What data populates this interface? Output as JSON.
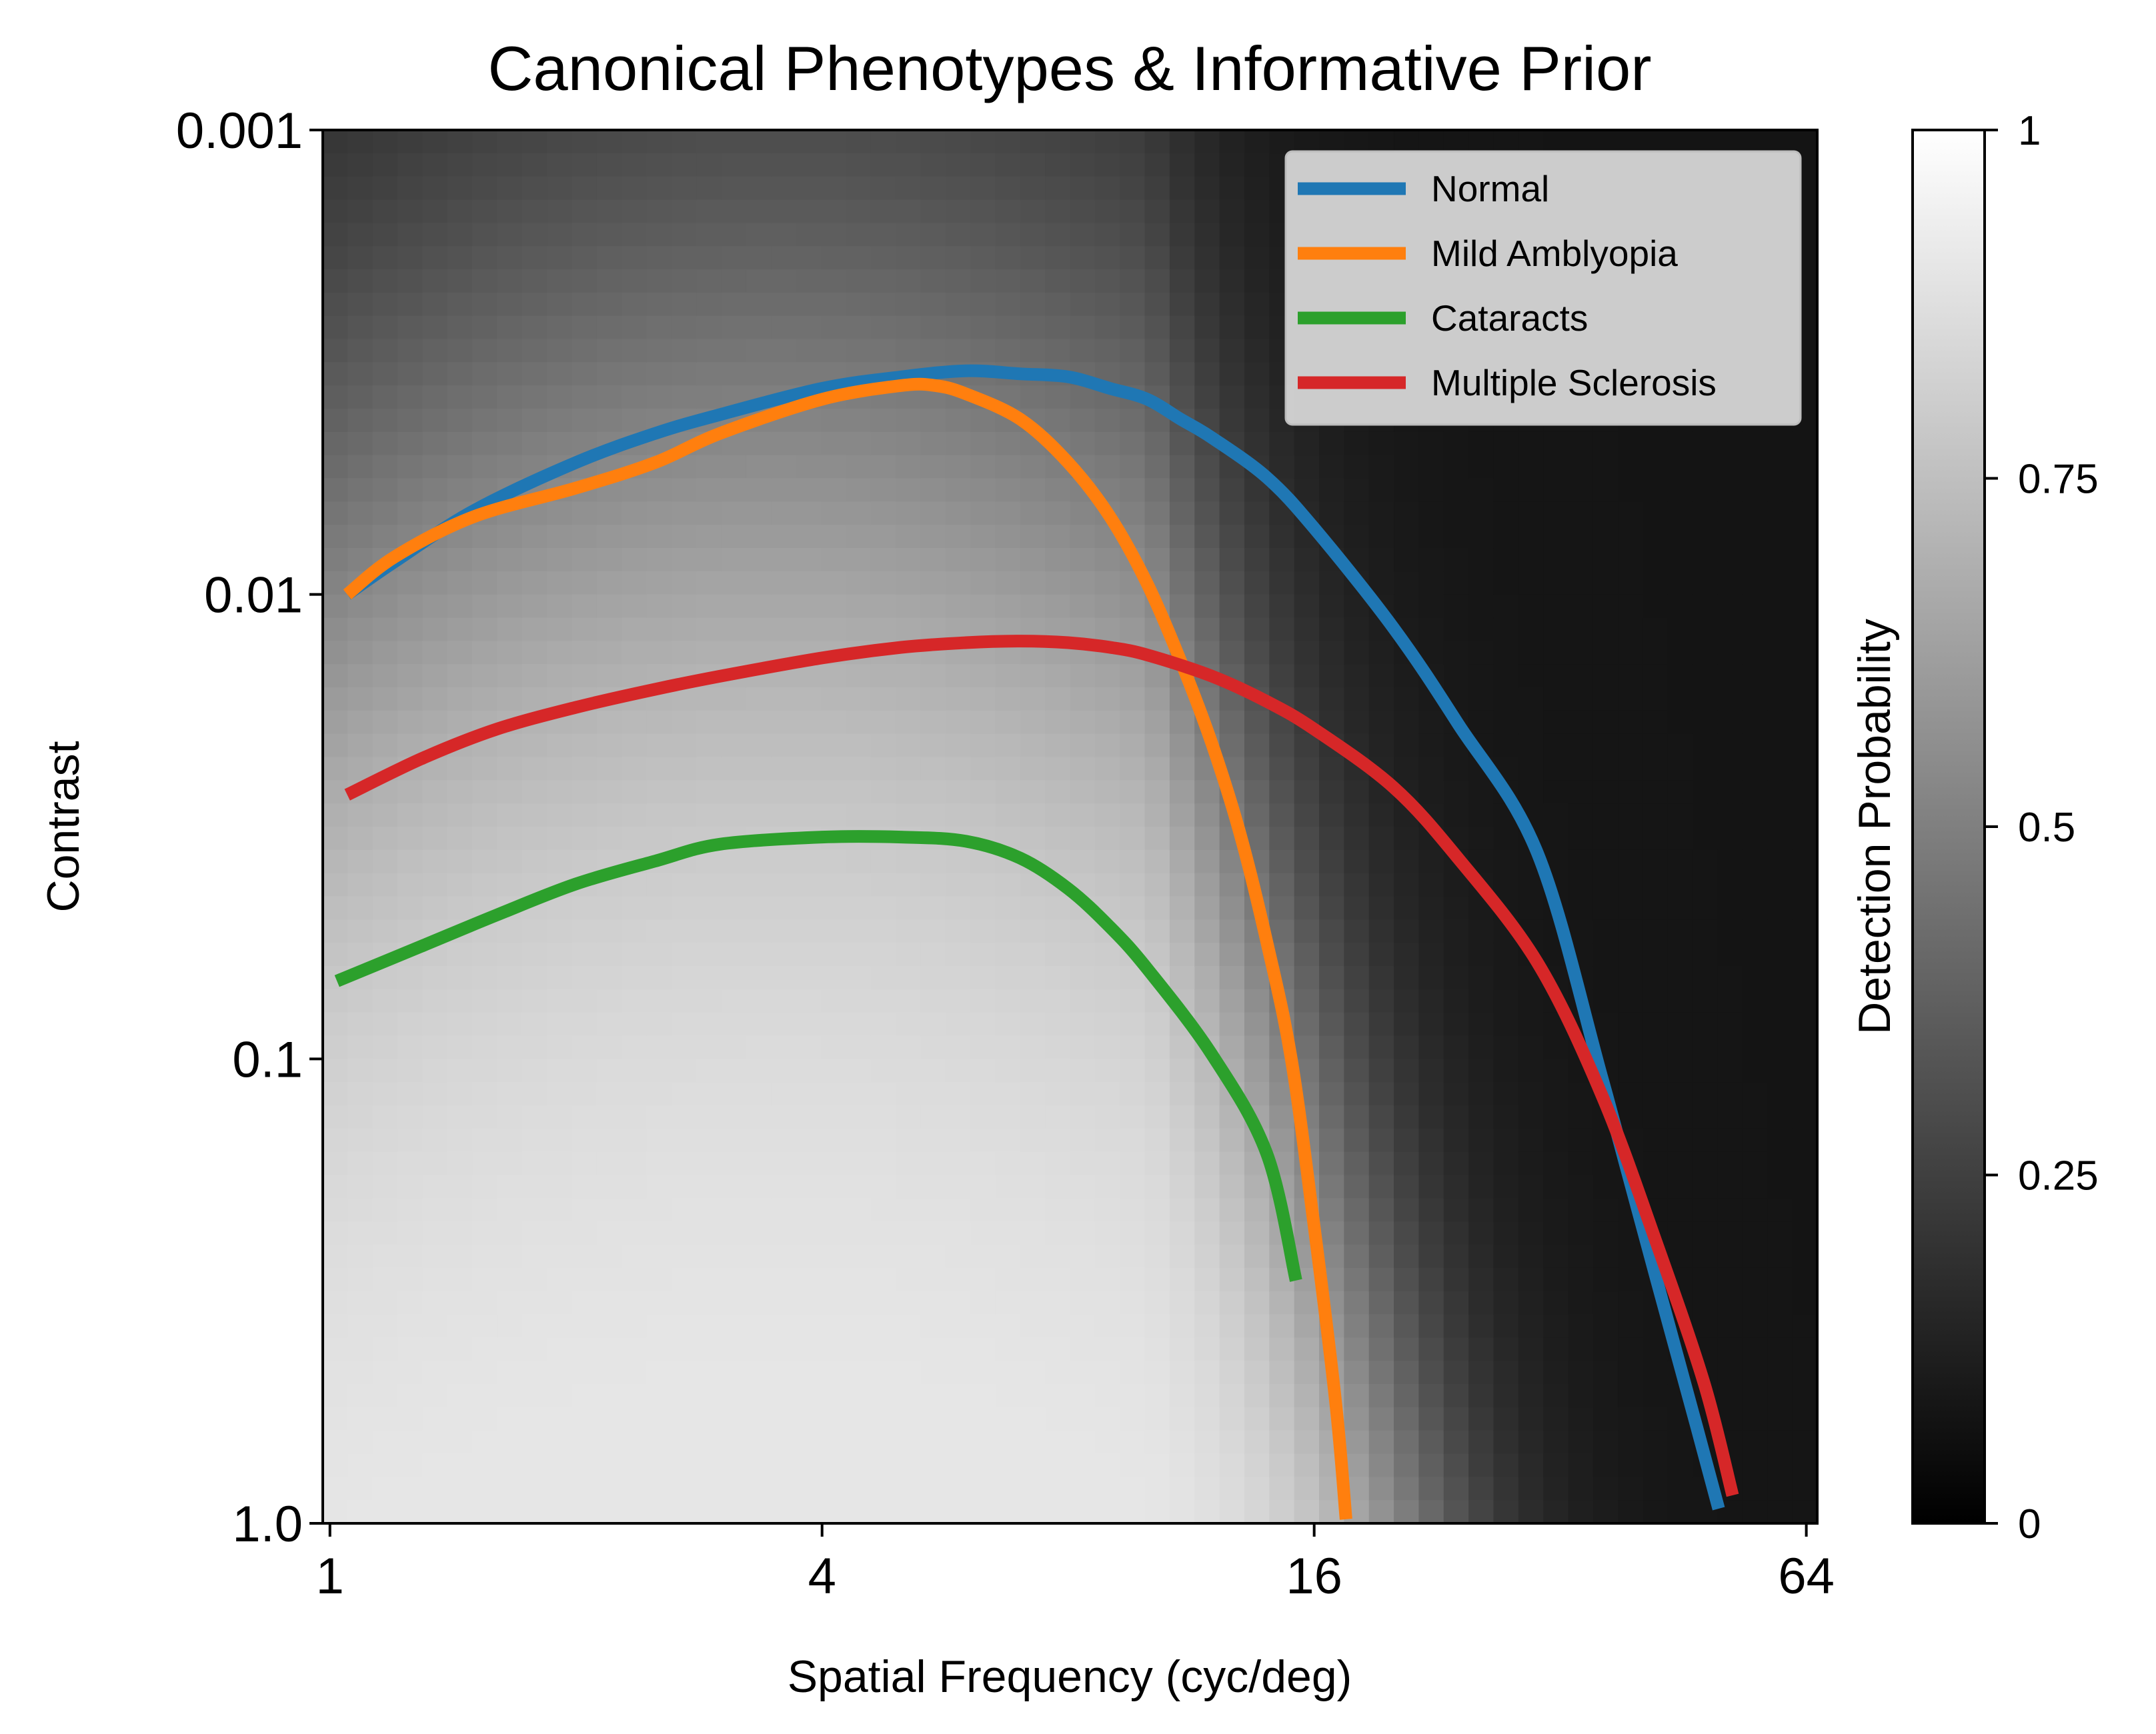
{
  "chart_data": {
    "type": "line",
    "title": "Canonical Phenotypes & Informative Prior",
    "xlabel": "Spatial Frequency (cyc/deg)",
    "ylabel": "Contrast",
    "x_scale": "log2",
    "y_scale": "log10-inverted",
    "xlim": [
      0.98,
      66
    ],
    "ylim": [
      1.0,
      0.001
    ],
    "x_ticks": [
      1,
      4,
      16,
      64
    ],
    "x_tick_labels": [
      "1",
      "4",
      "16",
      "64"
    ],
    "y_ticks": [
      0.001,
      0.01,
      0.1,
      1.0
    ],
    "y_tick_labels": [
      "0.001",
      "0.01",
      "0.1",
      "1.0"
    ],
    "grid": false,
    "legend_position": "top-right",
    "background": {
      "type": "heatmap",
      "colormap": "gray",
      "colorbar_label": "Detection Probability",
      "colorbar_range": [
        0,
        1
      ],
      "colorbar_ticks": [
        0,
        0.25,
        0.5,
        0.75,
        1
      ],
      "colorbar_tick_labels": [
        "0",
        "0.25",
        "0.5",
        "0.75",
        "1"
      ]
    },
    "series": [
      {
        "name": "Normal",
        "color": "#1f77b4",
        "x": [
          1.05,
          1.2,
          1.5,
          2,
          2.5,
          3,
          4,
          5,
          6,
          7,
          8,
          9,
          10,
          11,
          12,
          14,
          16,
          20,
          24,
          30,
          36,
          42,
          47,
          50
        ],
        "y": [
          0.01,
          0.0085,
          0.0066,
          0.0052,
          0.0045,
          0.0041,
          0.0036,
          0.0034,
          0.0033,
          0.00335,
          0.0034,
          0.0036,
          0.0038,
          0.0042,
          0.0046,
          0.0056,
          0.0072,
          0.0118,
          0.019,
          0.036,
          0.11,
          0.3,
          0.62,
          0.93
        ]
      },
      {
        "name": "Mild Amblyopia",
        "color": "#ff7f0e",
        "x": [
          1.05,
          1.2,
          1.5,
          2,
          2.5,
          3,
          4,
          5,
          5.5,
          6,
          7,
          8,
          9,
          10,
          11,
          12,
          13,
          14,
          15,
          16,
          17,
          17.5
        ],
        "y": [
          0.01,
          0.0083,
          0.0068,
          0.0059,
          0.0052,
          0.0045,
          0.0038,
          0.00355,
          0.00355,
          0.0037,
          0.0042,
          0.0052,
          0.0068,
          0.0095,
          0.014,
          0.021,
          0.033,
          0.056,
          0.1,
          0.23,
          0.55,
          0.98
        ]
      },
      {
        "name": "Cataracts",
        "color": "#2ca02c",
        "x": [
          1.02,
          1.3,
          1.6,
          2,
          2.5,
          3,
          4,
          5,
          6,
          7,
          8,
          9,
          10,
          12,
          14,
          15.2
        ],
        "y": [
          0.068,
          0.057,
          0.049,
          0.042,
          0.0375,
          0.0345,
          0.0333,
          0.0333,
          0.034,
          0.037,
          0.043,
          0.052,
          0.064,
          0.098,
          0.16,
          0.3
        ]
      },
      {
        "name": "Multiple Sclerosis",
        "color": "#d62728",
        "x": [
          1.05,
          1.3,
          1.6,
          2,
          2.5,
          3,
          4,
          5,
          6,
          7,
          8,
          9,
          10,
          12,
          14,
          16,
          20,
          24,
          30,
          36,
          42,
          48,
          52
        ],
        "y": [
          0.027,
          0.0225,
          0.0195,
          0.0175,
          0.016,
          0.015,
          0.0137,
          0.013,
          0.0127,
          0.0126,
          0.0127,
          0.013,
          0.0135,
          0.015,
          0.017,
          0.0195,
          0.026,
          0.037,
          0.062,
          0.12,
          0.25,
          0.5,
          0.87
        ]
      }
    ]
  }
}
